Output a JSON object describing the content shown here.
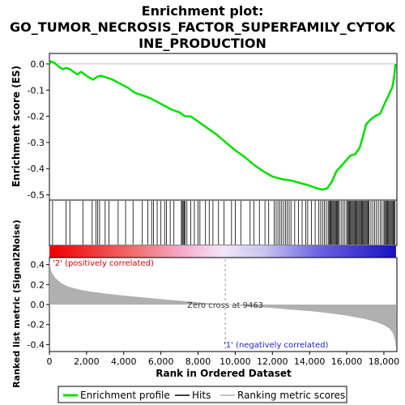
{
  "chart_data": {
    "type": "line",
    "title_lines": [
      "Enrichment plot:",
      "GO_TUMOR_NECROSIS_FACTOR_SUPERFAMILY_CYTOK",
      "INE_PRODUCTION"
    ],
    "xlabel": "Rank in Ordered Dataset",
    "xlim": [
      0,
      18700
    ],
    "xticks": [
      0,
      2000,
      4000,
      6000,
      8000,
      10000,
      12000,
      14000,
      16000,
      18000
    ],
    "xtick_labels": [
      "0",
      "2,000",
      "4,000",
      "6,000",
      "8,000",
      "10,000",
      "12,000",
      "14,000",
      "16,000",
      "18,000"
    ],
    "es_panel": {
      "ylabel": "Enrichment score (ES)",
      "ylim": [
        -0.52,
        0.04
      ],
      "yticks": [
        0.0,
        -0.1,
        -0.2,
        -0.3,
        -0.4,
        -0.5
      ],
      "ytick_labels": [
        "0.0",
        "-0.1",
        "-0.2",
        "-0.3",
        "-0.4",
        "-0.5"
      ],
      "line_color": "#00e000",
      "series_name": "Enrichment profile",
      "points": [
        [
          0,
          0.0
        ],
        [
          80,
          0.01
        ],
        [
          250,
          0.005
        ],
        [
          500,
          -0.01
        ],
        [
          700,
          -0.02
        ],
        [
          900,
          -0.015
        ],
        [
          1100,
          -0.02
        ],
        [
          1300,
          -0.03
        ],
        [
          1500,
          -0.04
        ],
        [
          1700,
          -0.03
        ],
        [
          1900,
          -0.04
        ],
        [
          2100,
          -0.05
        ],
        [
          2350,
          -0.06
        ],
        [
          2550,
          -0.05
        ],
        [
          2750,
          -0.045
        ],
        [
          3000,
          -0.05
        ],
        [
          3400,
          -0.06
        ],
        [
          3800,
          -0.075
        ],
        [
          4200,
          -0.09
        ],
        [
          4600,
          -0.11
        ],
        [
          5000,
          -0.12
        ],
        [
          5400,
          -0.13
        ],
        [
          5800,
          -0.145
        ],
        [
          6200,
          -0.16
        ],
        [
          6600,
          -0.175
        ],
        [
          7000,
          -0.185
        ],
        [
          7300,
          -0.2
        ],
        [
          7600,
          -0.2
        ],
        [
          8000,
          -0.22
        ],
        [
          8500,
          -0.245
        ],
        [
          9000,
          -0.27
        ],
        [
          9500,
          -0.3
        ],
        [
          10000,
          -0.33
        ],
        [
          10500,
          -0.355
        ],
        [
          11000,
          -0.385
        ],
        [
          11500,
          -0.41
        ],
        [
          12000,
          -0.43
        ],
        [
          12500,
          -0.44
        ],
        [
          13000,
          -0.445
        ],
        [
          13500,
          -0.455
        ],
        [
          14000,
          -0.465
        ],
        [
          14400,
          -0.475
        ],
        [
          14700,
          -0.48
        ],
        [
          14950,
          -0.475
        ],
        [
          15200,
          -0.45
        ],
        [
          15450,
          -0.41
        ],
        [
          15700,
          -0.39
        ],
        [
          15950,
          -0.37
        ],
        [
          16200,
          -0.35
        ],
        [
          16450,
          -0.345
        ],
        [
          16700,
          -0.32
        ],
        [
          16900,
          -0.27
        ],
        [
          17050,
          -0.23
        ],
        [
          17250,
          -0.215
        ],
        [
          17500,
          -0.2
        ],
        [
          17800,
          -0.19
        ],
        [
          18050,
          -0.15
        ],
        [
          18250,
          -0.12
        ],
        [
          18450,
          -0.09
        ],
        [
          18550,
          -0.05
        ],
        [
          18620,
          0.0
        ]
      ]
    },
    "hits_panel": {
      "series_name": "Hits",
      "positions": [
        170,
        900,
        1100,
        1800,
        2300,
        2500,
        2600,
        2700,
        3000,
        3200,
        3700,
        4100,
        4500,
        5000,
        5300,
        5500,
        5600,
        5800,
        6000,
        6200,
        6300,
        6500,
        6700,
        7100,
        7150,
        7200,
        7250,
        7300,
        7400,
        7600,
        7800,
        8000,
        8100,
        8400,
        8600,
        8800,
        9100,
        9400,
        9800,
        10000,
        10300,
        10800,
        11000,
        11300,
        11600,
        11800,
        12100,
        12200,
        12300,
        12400,
        12500,
        12600,
        12700,
        12800,
        12900,
        13000,
        13200,
        13400,
        13600,
        13800,
        13900,
        14100,
        14300,
        14500,
        14600,
        14700,
        14800,
        14900,
        15000,
        15050,
        15100,
        15150,
        15200,
        15250,
        15300,
        15350,
        15400,
        15450,
        15500,
        15550,
        15600,
        15700,
        15800,
        15900,
        16000,
        16050,
        16100,
        16150,
        16200,
        16250,
        16300,
        16350,
        16400,
        16450,
        16500,
        16550,
        16600,
        16650,
        16700,
        16750,
        16800,
        16850,
        16900,
        16950,
        17000,
        17050,
        17100,
        17150,
        17200,
        17300,
        17400,
        17500,
        17600,
        17700,
        17800,
        17900,
        18000,
        18050,
        18100,
        18150,
        18200,
        18250,
        18300,
        18350,
        18400,
        18450,
        18500,
        18550,
        18600
      ]
    },
    "metric_panel": {
      "ylabel": "Ranked list metric (Signal2Noise)",
      "ylim": [
        -0.47,
        0.47
      ],
      "yticks": [
        0.4,
        0.2,
        0.0,
        -0.2,
        -0.4
      ],
      "ytick_labels": [
        "0.4",
        "0.2",
        "0.0",
        "-0.2",
        "-0.4"
      ],
      "series_name": "Ranking metric scores",
      "fill_color": "#b0b0b0",
      "points": [
        [
          0,
          0.44
        ],
        [
          100,
          0.33
        ],
        [
          300,
          0.27
        ],
        [
          600,
          0.22
        ],
        [
          1000,
          0.18
        ],
        [
          1500,
          0.155
        ],
        [
          2000,
          0.135
        ],
        [
          3000,
          0.11
        ],
        [
          4000,
          0.09
        ],
        [
          5000,
          0.072
        ],
        [
          6000,
          0.055
        ],
        [
          7000,
          0.038
        ],
        [
          8000,
          0.022
        ],
        [
          9000,
          0.007
        ],
        [
          9463,
          0.0
        ],
        [
          10000,
          -0.008
        ],
        [
          11000,
          -0.022
        ],
        [
          12000,
          -0.035
        ],
        [
          13000,
          -0.05
        ],
        [
          14000,
          -0.065
        ],
        [
          15000,
          -0.085
        ],
        [
          16000,
          -0.11
        ],
        [
          17000,
          -0.145
        ],
        [
          17600,
          -0.175
        ],
        [
          18000,
          -0.205
        ],
        [
          18300,
          -0.24
        ],
        [
          18500,
          -0.29
        ],
        [
          18600,
          -0.36
        ],
        [
          18650,
          -0.44
        ]
      ],
      "zero_cross_label": "Zero cross at 9463",
      "zero_cross": 9463,
      "pos_label": "'2' (positively correlated)",
      "neg_label": "'1' (negatively correlated)",
      "pos_color": "#dd0000",
      "neg_color": "#2222dd"
    },
    "legend": {
      "placement": "bottom",
      "items": [
        {
          "label": "Enrichment profile",
          "color": "#00e000"
        },
        {
          "label": "Hits",
          "color": "#000000"
        },
        {
          "label": "Ranking metric scores",
          "color": "#b0b0b0"
        }
      ]
    }
  }
}
